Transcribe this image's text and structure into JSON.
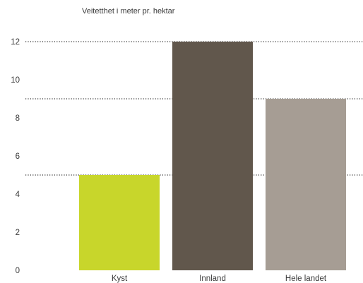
{
  "chart_data": {
    "type": "bar",
    "title": "Veitetthet i meter pr. hektar",
    "categories": [
      "Kyst",
      "Innland",
      "Hele landet"
    ],
    "values": [
      5,
      12,
      9
    ],
    "colors": [
      "#c8d62b",
      "#61574c",
      "#a69d94"
    ],
    "ylim": [
      0,
      12
    ],
    "yticks": [
      0,
      2,
      4,
      6,
      8,
      10,
      12
    ],
    "reference_lines": [
      12,
      9,
      5
    ],
    "grid": false,
    "xlabel": "",
    "ylabel": ""
  }
}
